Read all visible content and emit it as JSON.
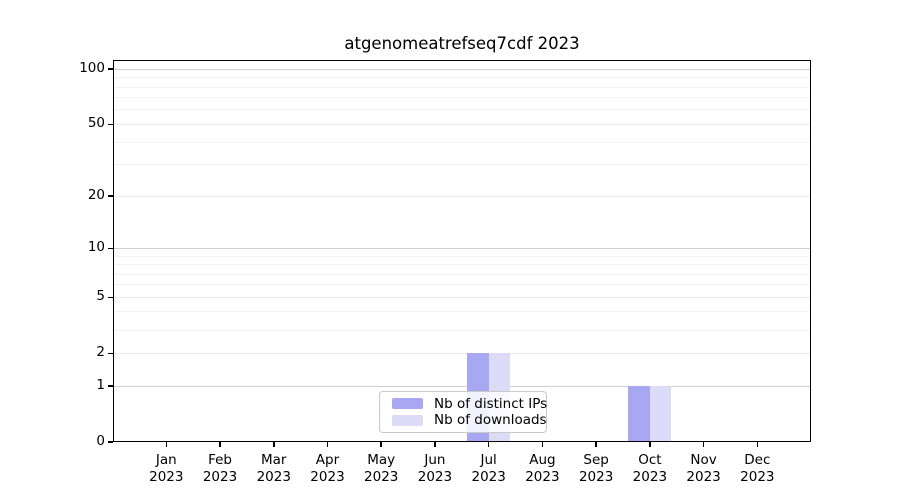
{
  "chart_data": {
    "type": "bar",
    "title": "atgenomeatrefseq7cdf 2023",
    "x_axis": {
      "months": [
        "Jan",
        "Feb",
        "Mar",
        "Apr",
        "May",
        "Jun",
        "Jul",
        "Aug",
        "Sep",
        "Oct",
        "Nov",
        "Dec"
      ],
      "year": "2023"
    },
    "y_axis": {
      "scale": "log10(1+x)",
      "ticks": [
        0,
        1,
        2,
        5,
        10,
        20,
        50,
        100
      ],
      "minor_gridlines": [
        3,
        4,
        6,
        7,
        8,
        9,
        30,
        40,
        60,
        70,
        80,
        90
      ],
      "ylim": [
        0,
        113
      ]
    },
    "series": [
      {
        "name": "Nb of distinct IPs",
        "color": "#a7a7f2",
        "values": [
          0,
          0,
          0,
          0,
          0,
          0,
          2,
          0,
          0,
          1,
          0,
          0
        ]
      },
      {
        "name": "Nb of downloads",
        "color": "#dcdcf8",
        "values": [
          0,
          0,
          0,
          0,
          0,
          0,
          2,
          0,
          0,
          1,
          0,
          0
        ]
      }
    ],
    "legend_position": "bottom-center",
    "grid": true
  },
  "colors": {
    "background": "#ffffff",
    "axis": "#000000",
    "grid_major": "#cfcfcf",
    "grid_mid": "#e9e9e9",
    "grid_minor": "#f2f2f2",
    "text": "#000000"
  }
}
